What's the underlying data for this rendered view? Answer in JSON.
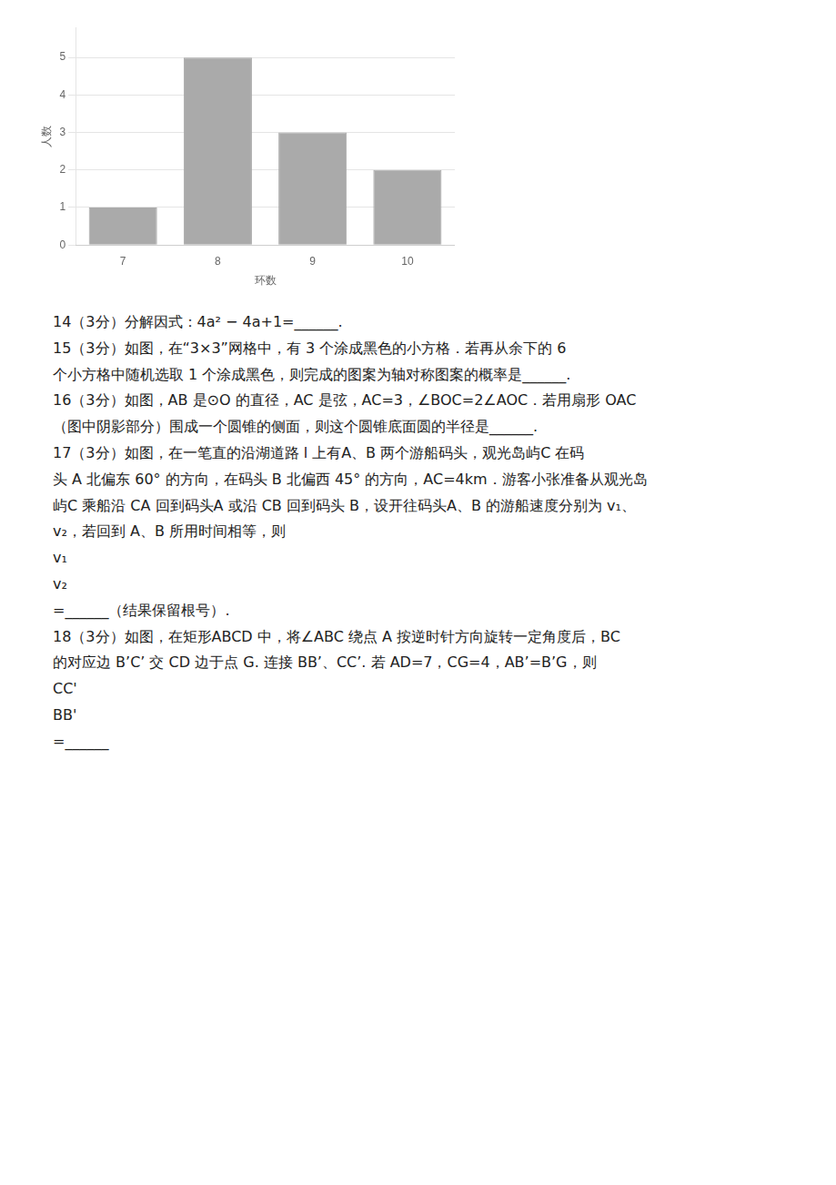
{
  "chart_data": {
    "type": "bar",
    "categories": [
      "7",
      "8",
      "9",
      "10"
    ],
    "values": [
      1,
      5,
      3,
      2
    ],
    "color": "#aaaaaa",
    "xlabel": "环数",
    "ylabel": "人数",
    "ylim": [
      0,
      5.8
    ],
    "yticks": [
      0,
      1,
      2,
      3,
      4,
      5
    ],
    "grid": true,
    "annotations": [
      "14（3分）分解因式：4a² − 4a+1=______.",
      "15（3分）如图，在“3×3”网格中，有 3 个涂成黑色的小方格．若再从余下的 6",
      "个小方格中随机选取 1 个涂成黑色，则完成的图案为轴对称图案的概率是______.",
      "16（3分）如图，AB 是⊙O 的直径，AC 是弦，AC=3，∠BOC=2∠AOC．若用扇形 OAC",
      "（图中阴影部分）围成一个圆锥的侧面，则这个圆锥底面圆的半径是______.",
      "17（3分）如图，在一笔直的沿湖道路 l 上有A、B 两个游船码头，观光岛屿C 在码",
      "头 A 北偏东 60° 的方向，在码头 B 北偏西 45° 的方向，AC=4km．游客小张准备从观光岛",
      "屿C 乘船沿 CA 回到码头A 或沿 CB 回到码头 B，设开往码头A、B 的游船速度分别为 v₁、",
      "v₂，若回到 A、B 所用时间相等，则",
      "v₁",
      "v₂",
      "=______（结果保留根号）.",
      "18（3分）如图，在矩形ABCD 中，将∠ABC 绕点 A 按逆时针方向旋转一定角度后，BC",
      "的对应边 B’C’ 交 CD 边于点 G. 连接 BB’、CC’. 若 AD=7，CG=4，AB’=B’G，则",
      "CC'",
      "BB'",
      "=______"
    ]
  }
}
